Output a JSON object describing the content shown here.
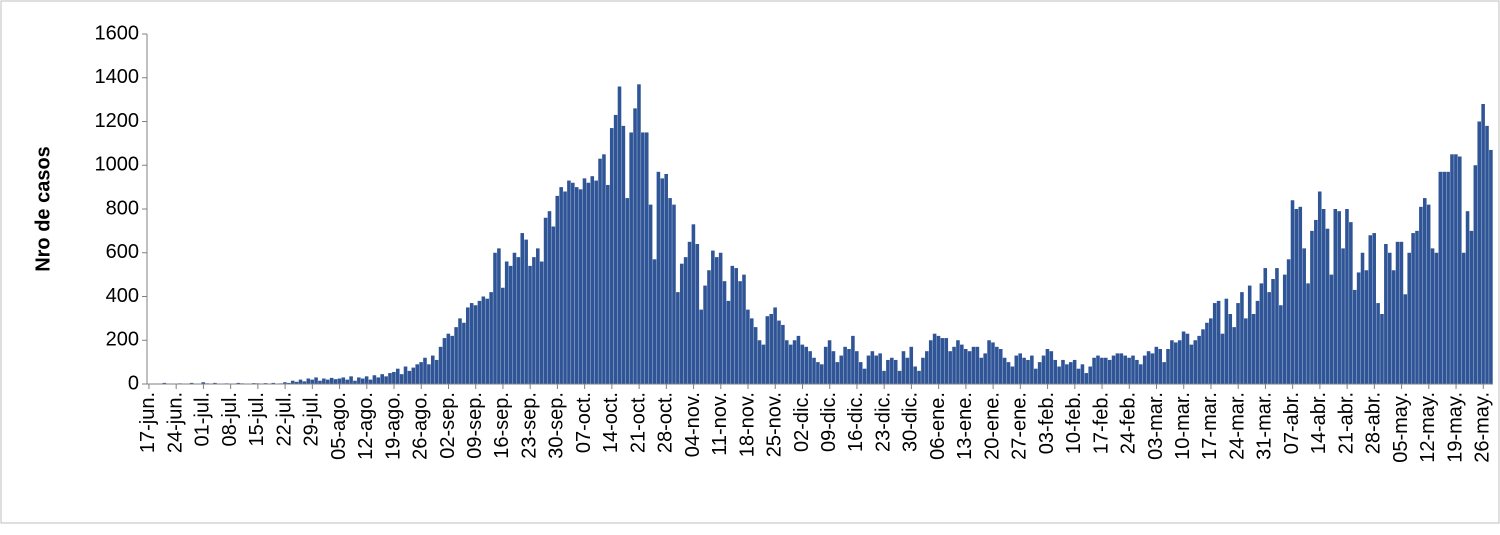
{
  "chart_data": {
    "type": "bar",
    "y_label": "Nro de casos",
    "color": "#2f5597",
    "ylim": [
      0,
      1600
    ],
    "yticks": [
      0,
      200,
      400,
      600,
      800,
      1000,
      1200,
      1400,
      1600
    ],
    "categories": [
      "17-jun.",
      null,
      null,
      null,
      null,
      null,
      null,
      "24-jun.",
      null,
      null,
      null,
      null,
      null,
      null,
      "01-jul.",
      null,
      null,
      null,
      null,
      null,
      null,
      "08-jul.",
      null,
      null,
      null,
      null,
      null,
      null,
      "15-jul.",
      null,
      null,
      null,
      null,
      null,
      null,
      "22-jul.",
      null,
      null,
      null,
      null,
      null,
      null,
      "29-jul.",
      null,
      null,
      null,
      null,
      null,
      null,
      "05-ago.",
      null,
      null,
      null,
      null,
      null,
      null,
      "12-ago.",
      null,
      null,
      null,
      null,
      null,
      null,
      "19-ago.",
      null,
      null,
      null,
      null,
      null,
      null,
      "26-ago.",
      null,
      null,
      null,
      null,
      null,
      null,
      "02-sep.",
      null,
      null,
      null,
      null,
      null,
      null,
      "09-sep.",
      null,
      null,
      null,
      null,
      null,
      null,
      "16-sep.",
      null,
      null,
      null,
      null,
      null,
      null,
      "23-sep.",
      null,
      null,
      null,
      null,
      null,
      null,
      "30-sep.",
      null,
      null,
      null,
      null,
      null,
      null,
      "07-oct.",
      null,
      null,
      null,
      null,
      null,
      null,
      "14-oct.",
      null,
      null,
      null,
      null,
      null,
      null,
      "21-oct.",
      null,
      null,
      null,
      null,
      null,
      null,
      "28-oct.",
      null,
      null,
      null,
      null,
      null,
      null,
      "04-nov.",
      null,
      null,
      null,
      null,
      null,
      null,
      "11-nov.",
      null,
      null,
      null,
      null,
      null,
      null,
      "18-nov.",
      null,
      null,
      null,
      null,
      null,
      null,
      "25-nov.",
      null,
      null,
      null,
      null,
      null,
      null,
      "02-dic.",
      null,
      null,
      null,
      null,
      null,
      null,
      "09-dic.",
      null,
      null,
      null,
      null,
      null,
      null,
      "16-dic.",
      null,
      null,
      null,
      null,
      null,
      null,
      "23-dic.",
      null,
      null,
      null,
      null,
      null,
      null,
      "30-dic.",
      null,
      null,
      null,
      null,
      null,
      null,
      "06-ene.",
      null,
      null,
      null,
      null,
      null,
      null,
      "13-ene.",
      null,
      null,
      null,
      null,
      null,
      null,
      "20-ene.",
      null,
      null,
      null,
      null,
      null,
      null,
      "27-ene.",
      null,
      null,
      null,
      null,
      null,
      null,
      "03-feb.",
      null,
      null,
      null,
      null,
      null,
      null,
      "10-feb.",
      null,
      null,
      null,
      null,
      null,
      null,
      "17-feb.",
      null,
      null,
      null,
      null,
      null,
      null,
      "24-feb.",
      null,
      null,
      null,
      null,
      null,
      null,
      "03-mar.",
      null,
      null,
      null,
      null,
      null,
      null,
      "10-mar.",
      null,
      null,
      null,
      null,
      null,
      null,
      "17-mar.",
      null,
      null,
      null,
      null,
      null,
      null,
      "24-mar.",
      null,
      null,
      null,
      null,
      null,
      null,
      "31-mar.",
      null,
      null,
      null,
      null,
      null,
      null,
      "07-abr.",
      null,
      null,
      null,
      null,
      null,
      null,
      "14-abr.",
      null,
      null,
      null,
      null,
      null,
      null,
      "21-abr.",
      null,
      null,
      null,
      null,
      null,
      null,
      "28-abr.",
      null,
      null,
      null,
      null,
      null,
      null,
      "05-may.",
      null,
      null,
      null,
      null,
      null,
      null,
      "12-may.",
      null,
      null,
      null,
      null,
      null,
      null,
      "19-may.",
      null,
      null,
      null,
      null,
      null,
      null,
      "26-may.",
      null,
      null
    ],
    "values": [
      0,
      0,
      2,
      0,
      5,
      0,
      0,
      0,
      3,
      0,
      0,
      5,
      0,
      2,
      8,
      3,
      0,
      5,
      2,
      0,
      3,
      2,
      0,
      5,
      3,
      0,
      2,
      4,
      3,
      0,
      4,
      2,
      5,
      0,
      3,
      8,
      5,
      15,
      10,
      20,
      12,
      25,
      20,
      30,
      15,
      25,
      20,
      28,
      22,
      25,
      30,
      20,
      35,
      15,
      30,
      25,
      35,
      20,
      40,
      30,
      45,
      35,
      50,
      55,
      70,
      45,
      80,
      60,
      75,
      90,
      100,
      120,
      90,
      130,
      110,
      170,
      210,
      230,
      220,
      260,
      300,
      280,
      350,
      370,
      360,
      380,
      400,
      390,
      420,
      600,
      620,
      440,
      560,
      540,
      600,
      580,
      690,
      660,
      540,
      580,
      620,
      560,
      760,
      790,
      720,
      860,
      900,
      880,
      930,
      920,
      900,
      890,
      940,
      920,
      950,
      930,
      1030,
      1050,
      910,
      1170,
      1230,
      1360,
      1180,
      850,
      1150,
      1260,
      1370,
      1150,
      1150,
      820,
      570,
      970,
      940,
      960,
      850,
      820,
      420,
      550,
      580,
      650,
      730,
      640,
      340,
      450,
      520,
      610,
      580,
      600,
      470,
      380,
      540,
      530,
      470,
      500,
      340,
      300,
      260,
      200,
      180,
      310,
      320,
      350,
      290,
      270,
      200,
      180,
      200,
      220,
      180,
      170,
      150,
      120,
      100,
      90,
      170,
      200,
      150,
      100,
      130,
      170,
      160,
      220,
      150,
      100,
      70,
      130,
      150,
      130,
      140,
      60,
      110,
      120,
      110,
      60,
      150,
      120,
      170,
      80,
      60,
      120,
      150,
      200,
      230,
      220,
      210,
      210,
      150,
      170,
      200,
      180,
      160,
      150,
      170,
      170,
      120,
      140,
      200,
      190,
      170,
      160,
      120,
      100,
      80,
      130,
      140,
      120,
      110,
      130,
      70,
      100,
      130,
      160,
      150,
      110,
      80,
      110,
      90,
      100,
      110,
      70,
      90,
      50,
      80,
      120,
      130,
      120,
      120,
      110,
      130,
      140,
      140,
      130,
      120,
      130,
      110,
      90,
      130,
      150,
      140,
      170,
      160,
      100,
      160,
      200,
      190,
      200,
      240,
      230,
      180,
      200,
      220,
      250,
      280,
      300,
      370,
      380,
      230,
      390,
      320,
      260,
      370,
      420,
      300,
      450,
      320,
      380,
      460,
      530,
      420,
      480,
      530,
      360,
      500,
      570,
      840,
      800,
      810,
      620,
      460,
      700,
      750,
      880,
      800,
      710,
      500,
      800,
      790,
      620,
      800,
      740,
      430,
      510,
      600,
      520,
      680,
      690,
      370,
      320,
      640,
      600,
      520,
      650,
      650,
      410,
      600,
      690,
      700,
      810,
      850,
      820,
      620,
      600,
      970,
      970,
      970,
      1050,
      1050,
      1040,
      600,
      790,
      700,
      1000,
      1200,
      1280,
      1180,
      1070
    ]
  }
}
